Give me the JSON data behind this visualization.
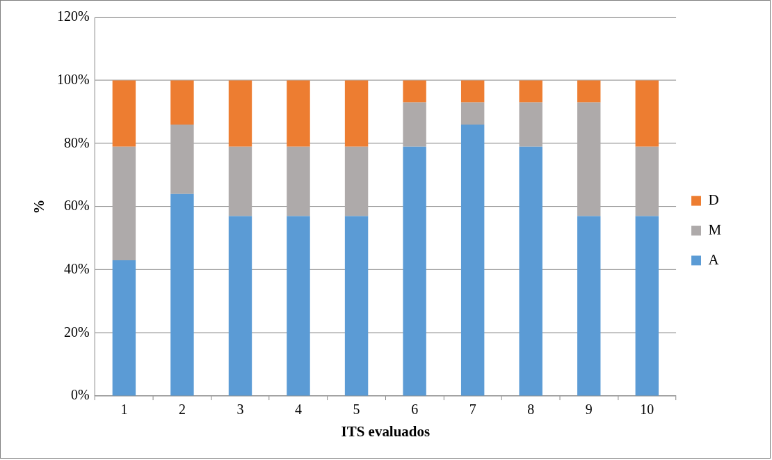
{
  "chart_data": {
    "type": "bar",
    "stacked": true,
    "xlabel": "ITS evaluados",
    "ylabel": "%",
    "categories": [
      "1",
      "2",
      "3",
      "4",
      "5",
      "6",
      "7",
      "8",
      "9",
      "10"
    ],
    "series": [
      {
        "name": "A",
        "color": "#5b9bd5",
        "values": [
          43,
          64,
          57,
          57,
          57,
          79,
          86,
          79,
          57,
          57
        ]
      },
      {
        "name": "M",
        "color": "#aeaaaa",
        "values": [
          36,
          22,
          22,
          22,
          22,
          14,
          7,
          14,
          36,
          22
        ]
      },
      {
        "name": "D",
        "color": "#ed7d31",
        "values": [
          21,
          14,
          21,
          21,
          21,
          7,
          7,
          7,
          7,
          21
        ]
      }
    ],
    "ylim": [
      0,
      120
    ],
    "yticks": [
      {
        "value": 0,
        "label": "0%"
      },
      {
        "value": 20,
        "label": "20%"
      },
      {
        "value": 40,
        "label": "40%"
      },
      {
        "value": 60,
        "label": "60%"
      },
      {
        "value": 80,
        "label": "80%"
      },
      {
        "value": 100,
        "label": "100%"
      },
      {
        "value": 120,
        "label": "120%"
      }
    ],
    "grid": "y",
    "legend": "right"
  }
}
